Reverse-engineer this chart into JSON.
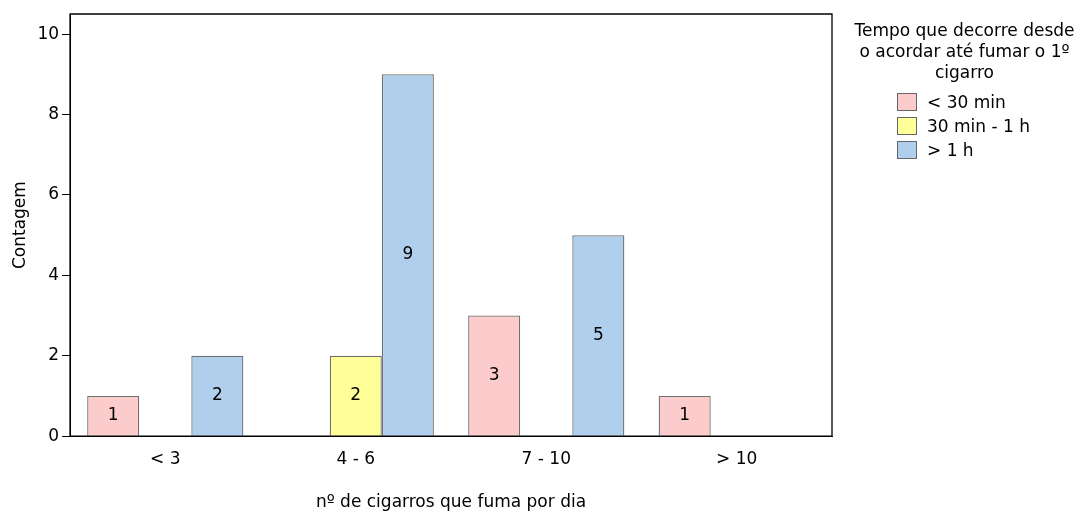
{
  "chart_data": {
    "type": "bar",
    "categories": [
      "< 3",
      "4 - 6",
      "7 - 10",
      "> 10"
    ],
    "series": [
      {
        "name": "< 30 min",
        "color": "#fccbcb",
        "values": [
          1,
          null,
          3,
          1
        ]
      },
      {
        "name": "30 min - 1 h",
        "color": "#ffff99",
        "values": [
          null,
          2,
          null,
          null
        ]
      },
      {
        "name": "> 1 h",
        "color": "#afcfed",
        "values": [
          2,
          9,
          5,
          null
        ]
      }
    ],
    "xlabel": "nº de cigarros que fuma por dia",
    "ylabel": "Contagem",
    "legend_title": "Tempo que decorre desde o acordar até fumar o 1º cigarro",
    "ylim": [
      0,
      10.5
    ],
    "yticks": [
      0,
      2,
      4,
      6,
      8,
      10
    ],
    "grid": false,
    "legend": "right",
    "data_labels": true
  }
}
